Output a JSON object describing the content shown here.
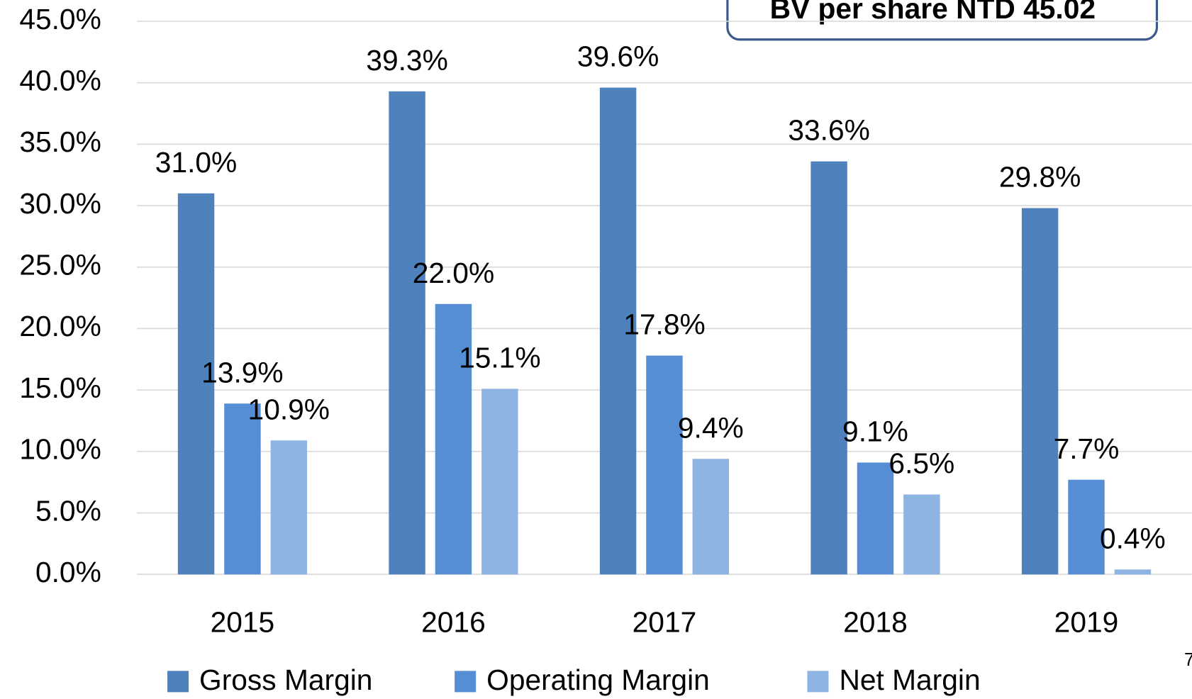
{
  "chart_data": {
    "type": "bar",
    "annotation": "BV per share NTD 45.02",
    "page_number": "7",
    "categories": [
      "2015",
      "2016",
      "2017",
      "2018",
      "2019"
    ],
    "series": [
      {
        "name": "Gross Margin",
        "color": "#4f81bd",
        "values": [
          31.0,
          39.3,
          39.6,
          33.6,
          29.8
        ],
        "value_labels": [
          "31.0%",
          "39.3%",
          "39.6%",
          "33.6%",
          "29.8%"
        ]
      },
      {
        "name": "Operating Margin",
        "color": "#558ed5",
        "values": [
          13.9,
          22.0,
          17.8,
          9.1,
          7.7
        ],
        "value_labels": [
          "13.9%",
          "22.0%",
          "17.8%",
          "9.1%",
          "7.7%"
        ]
      },
      {
        "name": "Net Margin",
        "color": "#8eb4e3",
        "values": [
          10.9,
          15.1,
          9.4,
          6.5,
          0.4
        ],
        "value_labels": [
          "10.9%",
          "15.1%",
          "9.4%",
          "6.5%",
          "0.4%"
        ]
      }
    ],
    "ylim": [
      0,
      45
    ],
    "yticks": [
      {
        "value": 0,
        "label": "0.0%"
      },
      {
        "value": 5,
        "label": "5.0%"
      },
      {
        "value": 10,
        "label": "10.0%"
      },
      {
        "value": 15,
        "label": "15.0%"
      },
      {
        "value": 20,
        "label": "20.0%"
      },
      {
        "value": 25,
        "label": "25.0%"
      },
      {
        "value": 30,
        "label": "30.0%"
      },
      {
        "value": 35,
        "label": "35.0%"
      },
      {
        "value": 40,
        "label": "40.0%"
      },
      {
        "value": 45,
        "label": "45.0%"
      }
    ],
    "grid": true,
    "legend": "bottom"
  }
}
